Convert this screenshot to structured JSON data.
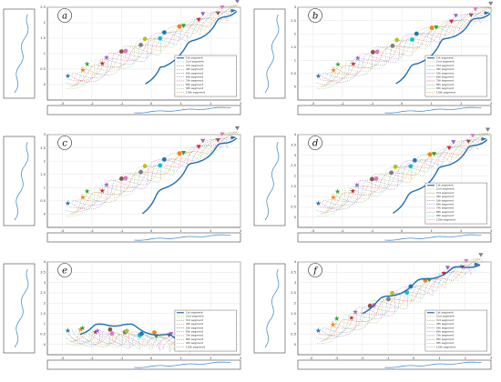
{
  "colors": {
    "axis": "#444444",
    "grid": "#e6e6e6",
    "trajectory": "#1f6fb4",
    "side_trace": "#4a90d9",
    "dotted_palette": [
      "#6b3fa0",
      "#c5a100",
      "#2e7d32",
      "#d2691e",
      "#1565c0",
      "#8e24aa",
      "#c62828",
      "#00897b",
      "#7cb342",
      "#ef6c00"
    ],
    "marker_palette": [
      "#1f77b4",
      "#ff7f0e",
      "#2ca02c",
      "#d62728",
      "#9467bd",
      "#8c564b",
      "#e377c2",
      "#7f7f7f",
      "#bcbd22",
      "#17becf"
    ]
  },
  "chart_data": [
    {
      "type": "line",
      "panel_label": "a",
      "xlabel": "X (m)",
      "ylabel": "Y (m)",
      "xlim": [
        -3.5,
        3
      ],
      "ylim": [
        -0.5,
        2.5
      ],
      "xticks": [
        -3,
        -2,
        -1,
        0,
        1,
        2,
        3
      ],
      "yticks": [
        0,
        0.5,
        1,
        1.5,
        2,
        2.5
      ],
      "grid": true,
      "legend_position": "bottom-right",
      "legend": [
        "1st segment",
        "2nd segment",
        "3rd segment",
        "4th segment",
        "5th segment",
        "6th segment",
        "7th segment",
        "8th segment",
        "9th segment",
        "10th segment"
      ],
      "series": [
        {
          "name": "1st segment",
          "x": [
            -0.2,
            0.2,
            0.5,
            0.9,
            1.3,
            1.7,
            2.1,
            2.5,
            2.8
          ],
          "y": [
            0.1,
            0.4,
            0.6,
            1.0,
            1.3,
            1.6,
            1.9,
            2.2,
            2.4
          ]
        }
      ]
    },
    {
      "type": "line",
      "panel_label": "b",
      "xlabel": "X (m)",
      "ylabel": "Y (m)",
      "xlim": [
        -3.5,
        3
      ],
      "ylim": [
        -0.5,
        3
      ],
      "xticks": [
        -3,
        -2,
        -1,
        0,
        1,
        2,
        3
      ],
      "yticks": [
        0,
        0.5,
        1,
        1.5,
        2,
        2.5,
        3
      ],
      "grid": true,
      "legend_position": "bottom-right",
      "legend": [
        "1st segment",
        "2nd segment",
        "3rd segment",
        "4th segment",
        "5th segment",
        "6th segment",
        "7th segment",
        "8th segment",
        "9th segment",
        "10th segment"
      ],
      "series": [
        {
          "name": "1st segment",
          "x": [
            -0.2,
            0.2,
            0.6,
            1.0,
            1.4,
            1.8,
            2.2,
            2.6,
            2.9
          ],
          "y": [
            0.2,
            0.6,
            0.9,
            1.3,
            1.7,
            2.0,
            2.3,
            2.6,
            2.8
          ]
        }
      ]
    },
    {
      "type": "line",
      "panel_label": "c",
      "xlabel": "X (m)",
      "ylabel": "Y (m)",
      "xlim": [
        -3.5,
        3
      ],
      "ylim": [
        -0.5,
        3
      ],
      "xticks": [
        -3,
        -2,
        -1,
        0,
        1,
        2,
        3
      ],
      "yticks": [
        0,
        0.5,
        1,
        1.5,
        2,
        2.5,
        3
      ],
      "grid": true,
      "legend_position": "none",
      "legend": [],
      "series": [
        {
          "name": "",
          "x": [
            -0.3,
            0.1,
            0.5,
            0.9,
            1.3,
            1.7,
            2.1,
            2.5,
            2.8
          ],
          "y": [
            0.1,
            0.6,
            1.0,
            1.4,
            1.8,
            2.1,
            2.4,
            2.7,
            2.9
          ]
        }
      ]
    },
    {
      "type": "line",
      "panel_label": "d",
      "xlabel": "X (m)",
      "ylabel": "Y (m)",
      "xlim": [
        -3.5,
        3
      ],
      "ylim": [
        -0.5,
        4
      ],
      "xticks": [
        -3,
        -2,
        -1,
        0,
        1,
        2,
        3
      ],
      "yticks": [
        0,
        0.5,
        1,
        1.5,
        2,
        2.5,
        3,
        3.5,
        4
      ],
      "grid": true,
      "legend_position": "bottom-right",
      "legend": [
        "1st segment",
        "2nd segment",
        "3rd segment",
        "4th segment",
        "5th segment",
        "6th segment",
        "7th segment",
        "8th segment",
        "9th segment",
        "10th segment"
      ],
      "series": [
        {
          "name": "1st segment",
          "x": [
            -0.3,
            0.1,
            0.5,
            0.9,
            1.3,
            1.7,
            2.1,
            2.5,
            2.8
          ],
          "y": [
            0.3,
            0.8,
            1.3,
            1.8,
            2.3,
            2.7,
            3.1,
            3.5,
            3.8
          ]
        }
      ]
    },
    {
      "type": "line",
      "panel_label": "e",
      "xlabel": "X (m)",
      "ylabel": "Y (m)",
      "xlim": [
        -3.5,
        3
      ],
      "ylim": [
        -0.5,
        4
      ],
      "xticks": [
        -3,
        -2,
        -1,
        0,
        1,
        2,
        3
      ],
      "yticks": [
        0,
        0.5,
        1,
        1.5,
        2,
        2.5,
        3,
        3.5,
        4
      ],
      "grid": true,
      "legend_position": "bottom-right",
      "legend": [
        "1st segment",
        "2nd segment",
        "3rd segment",
        "4th segment",
        "5th segment",
        "6th segment",
        "7th segment",
        "8th segment",
        "9th segment",
        "10th segment"
      ],
      "series": [
        {
          "name": "1st segment",
          "x": [
            -2.4,
            -2.0,
            -1.5,
            -1.0,
            -0.5,
            0.0,
            0.5,
            1.0,
            1.5
          ],
          "y": [
            0.6,
            0.8,
            1.0,
            1.0,
            0.8,
            0.6,
            0.4,
            0.2,
            0.0
          ]
        }
      ]
    },
    {
      "type": "line",
      "panel_label": "f",
      "xlabel": "X (m)",
      "ylabel": "Y (m)",
      "xlim": [
        -4.5,
        3
      ],
      "ylim": [
        -0.5,
        4
      ],
      "xticks": [
        -4,
        -3,
        -2,
        -1,
        0,
        1,
        2,
        3
      ],
      "yticks": [
        0,
        0.5,
        1,
        1.5,
        2,
        2.5,
        3,
        3.5,
        4
      ],
      "grid": true,
      "legend_position": "bottom-right",
      "legend": [
        "1st segment",
        "2nd segment",
        "3rd segment",
        "4th segment",
        "5th segment",
        "6th segment",
        "7th segment",
        "8th segment",
        "9th segment",
        "10th segment"
      ],
      "series": [
        {
          "name": "1st segment",
          "x": [
            -2.0,
            -1.5,
            -1.0,
            -0.5,
            0.0,
            0.5,
            1.0,
            1.5,
            2.0,
            2.5
          ],
          "y": [
            1.6,
            2.0,
            2.3,
            2.6,
            2.9,
            3.2,
            3.4,
            3.6,
            3.8,
            3.9
          ]
        }
      ]
    }
  ]
}
